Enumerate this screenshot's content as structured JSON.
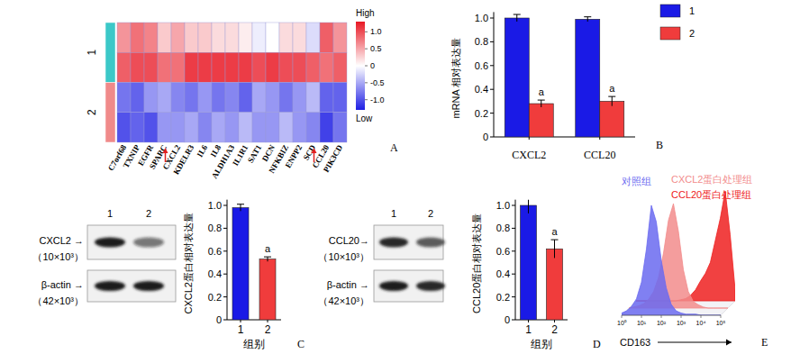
{
  "chart_data": [
    {
      "type": "heatmap",
      "panel_label": "A",
      "categories": [
        "C7orf68",
        "TXNIP",
        "EGFR",
        "SPARC",
        "CXCL2",
        "KDELR3",
        "IL6",
        "IL8",
        "ALDH1A3",
        "IL1R1",
        "SAT1",
        "DCN",
        "NFKBIZ",
        "ENPP2",
        "SCD",
        "CCL20",
        "PIK3CD"
      ],
      "groups": [
        {
          "name": "1",
          "color": "#3cc8c8",
          "cells": [
            [
              0.6,
              0.8,
              0.7,
              0.3,
              0.5,
              0.3,
              0.3,
              0.2,
              0.2,
              0.1,
              -0.1,
              0.0,
              0.2,
              0.2,
              -0.2,
              0.9,
              0.6
            ],
            [
              0.9,
              1.0,
              1.0,
              0.8,
              0.8,
              1.1,
              1.1,
              1.1,
              1.1,
              1.1,
              1.0,
              1.1,
              1.0,
              1.0,
              0.9,
              0.8,
              0.9
            ]
          ]
        },
        {
          "name": "2",
          "color": "#f08a8a",
          "cells": [
            [
              -0.8,
              -0.9,
              -0.6,
              -0.5,
              -0.7,
              -0.8,
              -0.6,
              -0.8,
              -0.7,
              -0.9,
              -0.5,
              -0.6,
              -0.8,
              -0.6,
              -0.4,
              -0.9,
              -0.9
            ],
            [
              -1.0,
              -0.9,
              -1.0,
              -0.6,
              -0.6,
              -0.5,
              -0.7,
              -0.5,
              -0.6,
              -0.4,
              -0.6,
              -0.6,
              -0.4,
              -0.6,
              -0.7,
              -1.1,
              -0.8
            ]
          ]
        }
      ],
      "arrows": [
        "CXCL2",
        "CCL20"
      ],
      "colorbar": {
        "range": [
          -1.3,
          1.3
        ],
        "ticks": [
          {
            "value": 1,
            "label": "1.0"
          },
          0.5,
          0,
          -0.5,
          {
            "value": -1,
            "label": "-1.0"
          }
        ],
        "high_label": "High",
        "low_label": "Low"
      }
    },
    {
      "type": "bar",
      "panel_label": "B",
      "y_label": "mRNA 相对表达量",
      "categories": [
        "CXCL2",
        "CCL20"
      ],
      "series": [
        {
          "name": "1",
          "color": "#1a1ae6",
          "values": [
            1.0,
            0.99
          ],
          "errors": [
            0.03,
            0.02
          ]
        },
        {
          "name": "2",
          "color": "#f03c3c",
          "values": [
            0.28,
            0.3
          ],
          "errors": [
            0.03,
            0.04
          ],
          "value_annotations": [
            "a",
            "a"
          ]
        }
      ],
      "ylim": [
        0,
        1.05
      ],
      "yticks": [
        0,
        0.2,
        0.4,
        0.6,
        0.8,
        {
          "value": 1,
          "label": "1.0"
        }
      ],
      "legend": "top-right"
    },
    {
      "type": "bar",
      "panel_label": "C",
      "y_label": "CXCL2蛋白相对表达量",
      "x_label": "组别",
      "categories": [
        "1",
        "2"
      ],
      "series": [
        {
          "colors": [
            "#1a1ae6",
            "#f03c3c"
          ],
          "values": [
            0.98,
            0.53
          ],
          "errors": [
            0.03,
            0.02
          ],
          "value_annotations": [
            null,
            "a"
          ]
        }
      ],
      "ylim": [
        0,
        1.05
      ],
      "yticks": [
        0,
        0.2,
        0.4,
        0.6,
        0.8,
        {
          "value": 1,
          "label": "1.0"
        }
      ]
    },
    {
      "type": "bar",
      "panel_label": "D",
      "y_label": "CCL20蛋白相对表达量",
      "x_label": "组别",
      "categories": [
        "1",
        "2"
      ],
      "series": [
        {
          "colors": [
            "#1a1ae6",
            "#f03c3c"
          ],
          "values": [
            1.0,
            0.62
          ],
          "errors": [
            0.07,
            0.08
          ],
          "value_annotations": [
            null,
            "a"
          ]
        }
      ],
      "ylim": [
        0,
        1.05
      ],
      "yticks": [
        0,
        0.2,
        0.4,
        0.6,
        0.8,
        {
          "value": 1,
          "label": "1.0"
        }
      ]
    },
    {
      "type": "area",
      "panel_label": "E",
      "x_label": "CD163",
      "log": "x",
      "tick_labels": "x",
      "legend": "top",
      "x": [
        1,
        1.78,
        3.16,
        5.62,
        10,
        17.8,
        31.6,
        56.2,
        100,
        178,
        316,
        562,
        1000,
        1780,
        3160,
        5620,
        10000,
        17800,
        31600,
        56200,
        100000
      ],
      "xlim": [
        1,
        100000
      ],
      "xticks": [
        {
          "value": 1,
          "label": "10⁰"
        },
        {
          "value": 10,
          "label": "10¹"
        },
        {
          "value": 100,
          "label": "10²"
        },
        {
          "value": 1000,
          "label": "10³"
        },
        {
          "value": 10000,
          "label": "10⁴"
        },
        {
          "value": 100000,
          "label": "10⁵"
        }
      ],
      "ylim": [
        0,
        100
      ],
      "series": [
        {
          "name": "对照组",
          "color": "#6a6af0",
          "values": [
            2,
            4,
            8,
            15,
            30,
            60,
            100,
            85,
            50,
            25,
            10,
            4,
            2,
            1,
            1,
            1,
            0,
            0,
            0,
            0,
            0
          ]
        },
        {
          "name": "CXCL2蛋白处理组",
          "color": "#f28c8c",
          "values": [
            0,
            1,
            2,
            4,
            8,
            15,
            28,
            50,
            80,
            95,
            70,
            35,
            15,
            6,
            3,
            1,
            0,
            0,
            0,
            0,
            0
          ]
        },
        {
          "name": "CCL20蛋白处理组",
          "color": "#ee2020",
          "values": [
            0,
            0,
            0,
            0,
            0,
            0,
            0,
            0,
            0,
            1,
            2,
            5,
            10,
            18,
            25,
            35,
            55,
            75,
            100,
            60,
            10
          ]
        }
      ]
    }
  ],
  "blots": [
    {
      "lanes": [
        "1",
        "2"
      ],
      "bands": [
        {
          "label": "CXCL2 →",
          "size": "（10×10³）",
          "intensities": [
            1,
            0.55
          ]
        },
        {
          "label": "β-actin →",
          "size": "（42×10³）",
          "intensities": [
            1,
            1
          ]
        }
      ]
    },
    {
      "lanes": [
        "1",
        "2"
      ],
      "bands": [
        {
          "label": "CCL20→",
          "size": "（10×10³）",
          "intensities": [
            0.95,
            0.7
          ]
        },
        {
          "label": "β-actin →",
          "size": "（42×10³）",
          "intensities": [
            1,
            0.95
          ]
        }
      ]
    }
  ]
}
